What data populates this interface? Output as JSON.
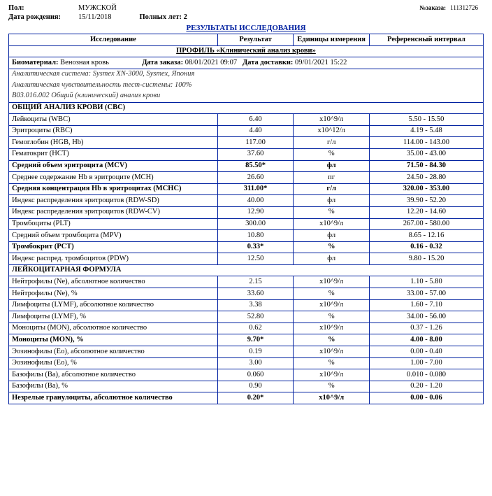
{
  "header": {
    "gender_label": "Пол:",
    "gender": "МУЖСКОЙ",
    "dob_label": "Дата рождения:",
    "dob": "15/11/2018",
    "age_label": "Полных лет: 2",
    "order_no_label": "№заказа:",
    "order_no": "111312726"
  },
  "title": "РЕЗУЛЬТАТЫ ИССЛЕДОВАНИЯ",
  "columns": {
    "name": "Исследование",
    "result": "Результат",
    "units": "Единицы измерения",
    "ref": "Референсный интервал"
  },
  "profile": {
    "title": "ПРОФИЛЬ «Клинический анализ крови»",
    "biomaterial_label": "Биоматериал:",
    "biomaterial": "Венозная кровь",
    "order_date_label": "Дата заказа:",
    "order_date": "08/01/2021 09:07",
    "delivery_label": "Дата доставки:",
    "delivery": "09/01/2021 15:22",
    "system": "Аналитическая система: Sysmex XN-3000, Sysmex, Япония",
    "sensitivity": "Аналитическая чувствительность тест-системы: 100%",
    "code": "B03.016.002 Общий (клинический) анализ крови"
  },
  "section1": "ОБЩИЙ АНАЛИЗ КРОВИ (CBC)",
  "rows1": [
    {
      "n": "Лейкоциты (WBC)",
      "r": "6.40",
      "u": "x10^9/л",
      "f": "5.50 - 15.50",
      "b": false
    },
    {
      "n": "Эритроциты (RBC)",
      "r": "4.40",
      "u": "x10^12/л",
      "f": "4.19 - 5.48",
      "b": false
    },
    {
      "n": "Гемоглобин (HGB, Hb)",
      "r": "117.00",
      "u": "г/л",
      "f": "114.00 - 143.00",
      "b": false
    },
    {
      "n": "Гематокрит (HCT)",
      "r": "37.60",
      "u": "%",
      "f": "35.00 - 43.00",
      "b": false
    },
    {
      "n": "Средний объем эритроцита (MCV)",
      "r": "85.50*",
      "u": "фл",
      "f": "71.50 - 84.30",
      "b": true
    },
    {
      "n": "Среднее содержание Hb в эритроците (MCH)",
      "r": "26.60",
      "u": "пг",
      "f": "24.50 - 28.80",
      "b": false
    },
    {
      "n": "Средняя концентрация Hb в эритроцитах (MCHC)",
      "r": "311.00*",
      "u": "г/л",
      "f": "320.00 - 353.00",
      "b": true
    },
    {
      "n": "Индекс распределения эритроцитов (RDW-SD)",
      "r": "40.00",
      "u": "фл",
      "f": "39.90 - 52.20",
      "b": false
    },
    {
      "n": "Индекс распределения эритроцитов (RDW-CV)",
      "r": "12.90",
      "u": "%",
      "f": "12.20 - 14.60",
      "b": false
    },
    {
      "n": "Тромбоциты (PLT)",
      "r": "300.00",
      "u": "x10^9/л",
      "f": "267.00 - 580.00",
      "b": false
    },
    {
      "n": "Средний объем тромбоцита (MPV)",
      "r": "10.80",
      "u": "фл",
      "f": "8.65 - 12.16",
      "b": false
    },
    {
      "n": "Тромбокрит (PCT)",
      "r": "0.33*",
      "u": "%",
      "f": "0.16 - 0.32",
      "b": true
    },
    {
      "n": "Индекс распред. тромбоцитов (PDW)",
      "r": "12.50",
      "u": "фл",
      "f": "9.80 - 15.20",
      "b": false
    }
  ],
  "section2": "ЛЕЙКОЦИТАРНАЯ ФОРМУЛА",
  "rows2": [
    {
      "n": "Нейтрофилы (Ne), абсолютное количество",
      "r": "2.15",
      "u": "x10^9/л",
      "f": "1.10 - 5.80",
      "b": false
    },
    {
      "n": "Нейтрофилы (Ne), %",
      "r": "33.60",
      "u": "%",
      "f": "33.00 - 57.00",
      "b": false
    },
    {
      "n": "Лимфоциты (LYMF), абсолютное количество",
      "r": "3.38",
      "u": "x10^9/л",
      "f": "1.60 - 7.10",
      "b": false
    },
    {
      "n": "Лимфоциты (LYMF), %",
      "r": "52.80",
      "u": "%",
      "f": "34.00 - 56.00",
      "b": false
    },
    {
      "n": "Моноциты (MON), абсолютное количество",
      "r": "0.62",
      "u": "x10^9/л",
      "f": "0.37 - 1.26",
      "b": false
    },
    {
      "n": "Моноциты (MON), %",
      "r": "9.70*",
      "u": "%",
      "f": "4.00 - 8.00",
      "b": true
    },
    {
      "n": "Эозинофилы (Eo), абсолютное количество",
      "r": "0.19",
      "u": "x10^9/л",
      "f": "0.00 - 0.40",
      "b": false
    },
    {
      "n": "Эозинофилы (Eo), %",
      "r": "3.00",
      "u": "%",
      "f": "1.00 - 7.00",
      "b": false
    },
    {
      "n": "Базофилы (Ba), абсолютное количество",
      "r": "0.060",
      "u": "x10^9/л",
      "f": "0.010 - 0.080",
      "b": false
    },
    {
      "n": "Базофилы (Ba), %",
      "r": "0.90",
      "u": "%",
      "f": "0.20 - 1.20",
      "b": false
    },
    {
      "n": "Незрелые гранулоциты, абсолютное количество",
      "r": "0.20*",
      "u": "x10^9/л",
      "f": "0.00 - 0.06",
      "b": true
    }
  ]
}
